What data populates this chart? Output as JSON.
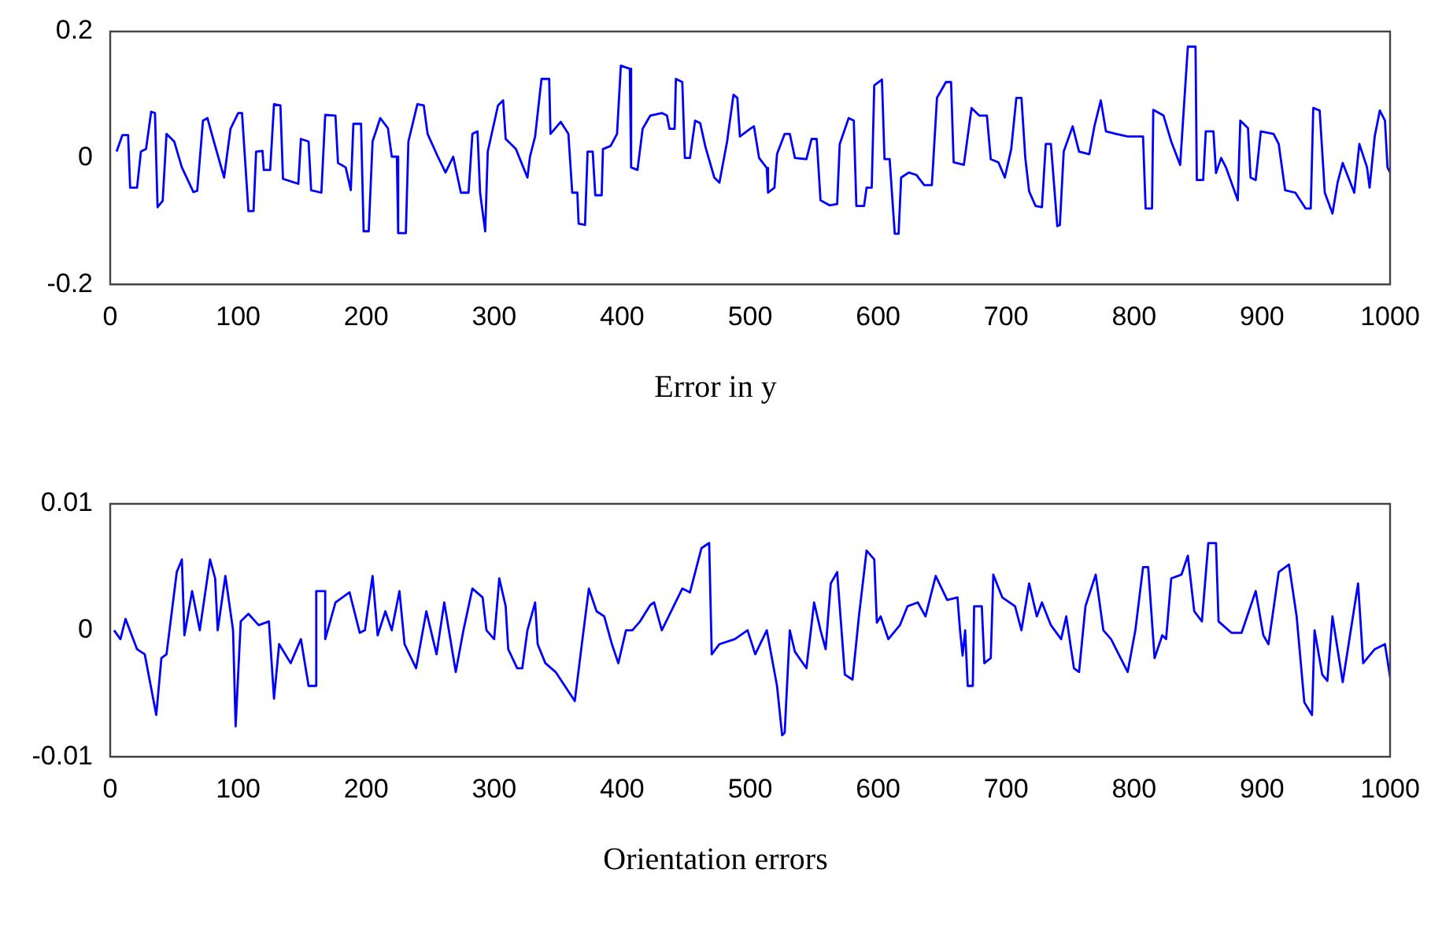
{
  "chart_data": [
    {
      "type": "line",
      "annotations": [
        "Error in y"
      ],
      "xlim": [
        0,
        1000
      ],
      "xticks": [
        0,
        100,
        200,
        300,
        400,
        500,
        600,
        700,
        800,
        900,
        1000
      ],
      "ylim": [
        -0.2,
        0.2
      ],
      "yticks": [
        -0.2,
        0,
        0.2
      ],
      "grid": false,
      "color": "#0000ff",
      "x": [
        5,
        9.5,
        14,
        15.6,
        21,
        24,
        28,
        32,
        35,
        37,
        41,
        44,
        50,
        56,
        65,
        68,
        72.5,
        76,
        81,
        89,
        94,
        100,
        103,
        108,
        112,
        114,
        119,
        120,
        125,
        128,
        133,
        135,
        147,
        149,
        155,
        157,
        165,
        168,
        176,
        178,
        184,
        188,
        190,
        196,
        198,
        202,
        205,
        211,
        217,
        220,
        224,
        225,
        231,
        233,
        240,
        245,
        248,
        256,
        262,
        268,
        274,
        280,
        283,
        287,
        289,
        293,
        295,
        303,
        307,
        309,
        317,
        326,
        328,
        332,
        337,
        343,
        344,
        352,
        358,
        361,
        365,
        366,
        371,
        373,
        377,
        379,
        384,
        385,
        391,
        396,
        399,
        406,
        407,
        412,
        416,
        422,
        431,
        435,
        437,
        441,
        442,
        447,
        449,
        453,
        457,
        461,
        465,
        472,
        476,
        482,
        487,
        490,
        492,
        500,
        503,
        507,
        513,
        514,
        519,
        521,
        527,
        531,
        535,
        544,
        548,
        552,
        555,
        562,
        568,
        570,
        577,
        581,
        583,
        589,
        591,
        595,
        597,
        603,
        605,
        609,
        613,
        616,
        618,
        624,
        630,
        636,
        642,
        646,
        653,
        657,
        659,
        667,
        673,
        679,
        685,
        688,
        694,
        699,
        704,
        708,
        712,
        715,
        718,
        723,
        728,
        731,
        735,
        740,
        742,
        745,
        752,
        757,
        765,
        769,
        774,
        778,
        786,
        795,
        807,
        809,
        814,
        815,
        823,
        829,
        836,
        842,
        848,
        849,
        854,
        856,
        862,
        864,
        868,
        872,
        881,
        883,
        889,
        891,
        895,
        899,
        909,
        913,
        918,
        926,
        934,
        938,
        940,
        945,
        949,
        955,
        959,
        963,
        972,
        976,
        982,
        984,
        988,
        992,
        996,
        998,
        1000
      ],
      "values": [
        0.01,
        0.036,
        0.036,
        -0.047,
        -0.047,
        0.01,
        0.014,
        0.073,
        0.071,
        -0.078,
        -0.068,
        0.038,
        0.026,
        -0.015,
        -0.054,
        -0.052,
        0.059,
        0.063,
        0.026,
        -0.031,
        0.046,
        0.071,
        0.071,
        -0.084,
        -0.084,
        0.01,
        0.011,
        -0.019,
        -0.019,
        0.085,
        0.083,
        -0.033,
        -0.041,
        0.03,
        0.026,
        -0.051,
        -0.055,
        0.068,
        0.067,
        -0.008,
        -0.015,
        -0.051,
        0.054,
        0.054,
        -0.116,
        -0.116,
        0.026,
        0.063,
        0.047,
        0.002,
        0.002,
        -0.119,
        -0.119,
        0.026,
        0.085,
        0.083,
        0.038,
        0.002,
        -0.023,
        0.002,
        -0.055,
        -0.055,
        0.038,
        0.042,
        -0.055,
        -0.116,
        0.01,
        0.083,
        0.091,
        0.03,
        0.014,
        -0.031,
        0.002,
        0.034,
        0.125,
        0.125,
        0.038,
        0.057,
        0.038,
        -0.055,
        -0.055,
        -0.104,
        -0.106,
        0.01,
        0.01,
        -0.059,
        -0.059,
        0.014,
        0.019,
        0.038,
        0.146,
        0.141,
        -0.015,
        -0.019,
        0.046,
        0.067,
        0.071,
        0.067,
        0.046,
        0.046,
        0.125,
        0.12,
        0,
        0,
        0.059,
        0.055,
        0.018,
        -0.031,
        -0.039,
        0.026,
        0.1,
        0.095,
        0.034,
        0.046,
        0.05,
        0,
        -0.016,
        -0.055,
        -0.047,
        0.006,
        0.038,
        0.038,
        0,
        -0.002,
        0.03,
        0.03,
        -0.067,
        -0.075,
        -0.073,
        0.022,
        0.063,
        0.059,
        -0.076,
        -0.076,
        -0.047,
        -0.047,
        0.115,
        0.124,
        -0.002,
        -0.002,
        -0.12,
        -0.12,
        -0.031,
        -0.023,
        -0.027,
        -0.043,
        -0.043,
        0.095,
        0.12,
        0.12,
        -0.007,
        -0.011,
        0.079,
        0.067,
        0.067,
        -0.002,
        -0.007,
        -0.031,
        0.014,
        0.095,
        0.095,
        0,
        -0.053,
        -0.076,
        -0.078,
        0.022,
        0.022,
        -0.108,
        -0.106,
        0.01,
        0.05,
        0.01,
        0.006,
        0.05,
        0.091,
        0.042,
        0.038,
        0.034,
        0.034,
        -0.08,
        -0.08,
        0.076,
        0.067,
        0.026,
        -0.011,
        0.176,
        0.176,
        -0.035,
        -0.035,
        0.042,
        0.042,
        -0.024,
        0,
        -0.016,
        -0.067,
        0.059,
        0.047,
        -0.031,
        -0.035,
        0.042,
        0.038,
        0.022,
        -0.051,
        -0.055,
        -0.08,
        -0.08,
        0.079,
        0.075,
        -0.055,
        -0.088,
        -0.039,
        -0.008,
        -0.055,
        0.022,
        -0.015,
        -0.047,
        0.034,
        0.075,
        0.059,
        -0.015,
        -0.023
      ]
    },
    {
      "type": "line",
      "annotations": [
        "Orientation errors"
      ],
      "xlim": [
        0,
        1000
      ],
      "xticks": [
        0,
        100,
        200,
        300,
        400,
        500,
        600,
        700,
        800,
        900,
        1000
      ],
      "ylim": [
        -0.01,
        0.01
      ],
      "yticks": [
        -0.01,
        0,
        0.01
      ],
      "grid": false,
      "color": "#0000ff",
      "x": [
        3,
        8,
        12,
        21,
        27,
        36,
        40,
        44,
        52,
        56,
        58,
        64,
        70,
        78,
        82,
        84,
        90,
        96,
        98,
        102,
        108,
        116,
        124,
        128,
        132,
        141,
        149,
        155,
        161,
        161,
        168,
        168,
        176,
        187,
        195,
        199,
        205,
        209,
        215,
        220,
        226,
        230,
        239,
        247,
        255,
        261,
        270,
        276,
        283,
        291,
        294,
        300,
        304,
        309,
        311,
        318,
        322,
        326,
        332,
        334,
        340,
        348,
        363,
        369,
        374,
        380,
        386,
        392,
        397,
        403,
        408,
        414,
        422,
        425,
        431,
        447,
        453,
        462,
        468,
        470,
        476,
        488,
        498,
        504,
        513,
        521,
        525,
        527,
        531,
        535,
        544,
        550,
        555,
        559,
        563,
        568,
        574,
        580,
        585,
        591,
        597,
        599,
        602,
        608,
        617,
        623,
        631,
        637,
        645,
        654,
        662,
        664,
        666,
        668,
        670,
        674,
        675,
        681,
        683,
        688,
        690,
        697,
        707,
        712,
        718,
        724,
        728,
        735,
        743,
        747,
        753,
        757,
        762,
        770,
        776,
        782,
        795,
        801,
        807,
        811,
        816,
        822,
        825,
        829,
        837,
        842,
        847,
        853,
        858,
        864,
        866,
        876,
        884,
        895,
        901,
        905,
        913,
        921,
        927,
        933,
        939,
        941,
        947,
        951,
        955,
        963,
        967,
        975,
        979,
        988,
        996,
        1000
      ],
      "values": [
        0,
        -0.0007,
        0.0009,
        -0.0015,
        -0.0019,
        -0.0067,
        -0.0022,
        -0.0019,
        0.0046,
        0.0056,
        -0.0004,
        0.0031,
        0,
        0.0056,
        0.0041,
        0,
        0.0043,
        0,
        -0.0076,
        0.0007,
        0.0013,
        0.0004,
        0.0007,
        -0.0054,
        -0.0011,
        -0.0026,
        -0.0007,
        -0.0044,
        -0.0044,
        0.0031,
        0.0031,
        -0.0007,
        0.0022,
        0.003,
        -0.0002,
        0,
        0.0043,
        -0.0004,
        0.0015,
        0,
        0.0031,
        -0.0011,
        -0.003,
        0.0015,
        -0.0019,
        0.0022,
        -0.0033,
        0,
        0.0033,
        0.0026,
        0,
        -0.0007,
        0.0041,
        0.0019,
        -0.0015,
        -0.003,
        -0.003,
        0,
        0.0022,
        -0.0011,
        -0.0026,
        -0.0033,
        -0.0056,
        -0.0007,
        0.0033,
        0.0015,
        0.0011,
        -0.0011,
        -0.0026,
        0,
        0,
        0.0007,
        0.002,
        0.0022,
        0,
        0.0033,
        0.003,
        0.0065,
        0.0069,
        -0.0019,
        -0.0011,
        -0.0007,
        0,
        -0.0019,
        0,
        -0.0044,
        -0.0083,
        -0.0081,
        0,
        -0.0017,
        -0.003,
        0.0022,
        0,
        -0.0015,
        0.0037,
        0.0046,
        -0.0035,
        -0.0039,
        0.0011,
        0.0063,
        0.0056,
        0.0006,
        0.0011,
        -0.0007,
        0.0004,
        0.0019,
        0.0022,
        0.0011,
        0.0043,
        0.0024,
        0.0026,
        0,
        -0.002,
        0,
        -0.0044,
        -0.0044,
        0.0019,
        0.0019,
        -0.0026,
        -0.0022,
        0.0044,
        0.0026,
        0.0019,
        0,
        0.0037,
        0.0011,
        0.0022,
        0.0004,
        -0.0007,
        0.0011,
        -0.003,
        -0.0033,
        0.0019,
        0.0044,
        0,
        -0.0007,
        -0.0033,
        0,
        0.005,
        0.005,
        -0.0022,
        -0.0004,
        -0.0007,
        0.0041,
        0.0044,
        0.0059,
        0.0015,
        0.0007,
        0.0069,
        0.0069,
        0.0007,
        -0.0002,
        -0.0002,
        0.0031,
        -0.0004,
        -0.0011,
        0.0046,
        0.0052,
        0.0011,
        -0.0057,
        -0.0067,
        0,
        -0.0035,
        -0.004,
        0.0011,
        -0.0041,
        -0.0015,
        0.0037,
        -0.0026,
        -0.0015,
        -0.0011,
        -0.0037
      ]
    }
  ]
}
